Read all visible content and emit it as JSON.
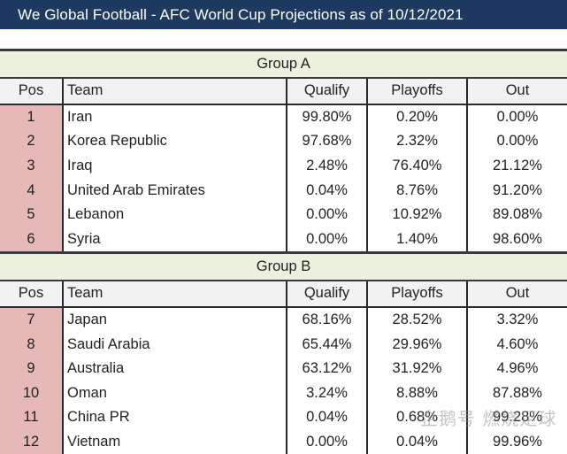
{
  "title": "We Global Football - AFC World Cup Projections as of 10/12/2021",
  "columns": {
    "pos": "Pos",
    "team": "Team",
    "qualify": "Qualify",
    "playoffs": "Playoffs",
    "out": "Out"
  },
  "groups": [
    {
      "name": "Group A",
      "rows": [
        {
          "pos": "1",
          "team": "Iran",
          "qualify": "99.80%",
          "playoffs": "0.20%",
          "out": "0.00%"
        },
        {
          "pos": "2",
          "team": "Korea Republic",
          "qualify": "97.68%",
          "playoffs": "2.32%",
          "out": "0.00%"
        },
        {
          "pos": "3",
          "team": "Iraq",
          "qualify": "2.48%",
          "playoffs": "76.40%",
          "out": "21.12%"
        },
        {
          "pos": "4",
          "team": "United Arab Emirates",
          "qualify": "0.04%",
          "playoffs": "8.76%",
          "out": "91.20%"
        },
        {
          "pos": "5",
          "team": "Lebanon",
          "qualify": "0.00%",
          "playoffs": "10.92%",
          "out": "89.08%"
        },
        {
          "pos": "6",
          "team": "Syria",
          "qualify": "0.00%",
          "playoffs": "1.40%",
          "out": "98.60%"
        }
      ]
    },
    {
      "name": "Group B",
      "rows": [
        {
          "pos": "7",
          "team": "Japan",
          "qualify": "68.16%",
          "playoffs": "28.52%",
          "out": "3.32%"
        },
        {
          "pos": "8",
          "team": "Saudi Arabia",
          "qualify": "65.44%",
          "playoffs": "29.96%",
          "out": "4.60%"
        },
        {
          "pos": "9",
          "team": "Australia",
          "qualify": "63.12%",
          "playoffs": "31.92%",
          "out": "4.96%"
        },
        {
          "pos": "10",
          "team": "Oman",
          "qualify": "3.24%",
          "playoffs": "8.88%",
          "out": "87.88%"
        },
        {
          "pos": "11",
          "team": "China PR",
          "qualify": "0.04%",
          "playoffs": "0.68%",
          "out": "99.28%"
        },
        {
          "pos": "12",
          "team": "Vietnam",
          "qualify": "0.00%",
          "playoffs": "0.04%",
          "out": "99.96%"
        }
      ]
    }
  ],
  "watermark": "企鹅号 燃烧足球",
  "colors": {
    "title_bg": "#1f3a60",
    "group_bg": "#ebf1de",
    "pos_bg": "#e6b8b7",
    "header_bg": "#f2f2f2"
  }
}
